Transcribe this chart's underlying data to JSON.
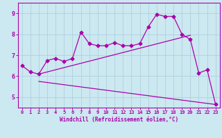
{
  "xlabel": "Windchill (Refroidissement éolien,°C)",
  "bg_color": "#cce8f0",
  "grid_color": "#aaccdd",
  "line_color": "#aa00aa",
  "spine_color": "#aa00aa",
  "xlim": [
    -0.5,
    23.5
  ],
  "ylim": [
    4.5,
    9.5
  ],
  "yticks": [
    5,
    6,
    7,
    8,
    9
  ],
  "xticks": [
    0,
    1,
    2,
    3,
    4,
    5,
    6,
    7,
    8,
    9,
    10,
    11,
    12,
    13,
    14,
    15,
    16,
    17,
    18,
    19,
    20,
    21,
    22,
    23
  ],
  "main_line_x": [
    0,
    1,
    2,
    3,
    4,
    5,
    6,
    7,
    8,
    9,
    10,
    11,
    12,
    13,
    14,
    15,
    16,
    17,
    18,
    19,
    20,
    21,
    22,
    23
  ],
  "main_line_y": [
    6.5,
    6.2,
    6.1,
    6.75,
    6.85,
    6.7,
    6.85,
    8.1,
    7.55,
    7.45,
    7.45,
    7.6,
    7.45,
    7.45,
    7.55,
    8.35,
    8.95,
    8.85,
    8.85,
    8.0,
    7.75,
    6.15,
    6.3,
    4.65
  ],
  "upper_line_x": [
    2,
    20
  ],
  "upper_line_y": [
    6.1,
    7.95
  ],
  "lower_line_x": [
    2,
    23
  ],
  "lower_line_y": [
    5.75,
    4.65
  ],
  "marker_size": 2.5,
  "linewidth": 0.9,
  "tick_fontsize": 5.0,
  "xlabel_fontsize": 5.5
}
